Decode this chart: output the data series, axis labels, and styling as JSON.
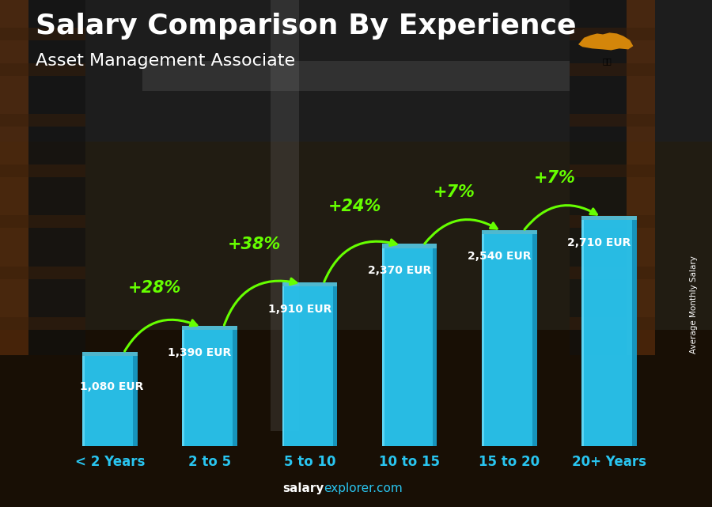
{
  "title": "Salary Comparison By Experience",
  "subtitle": "Asset Management Associate",
  "categories": [
    "< 2 Years",
    "2 to 5",
    "5 to 10",
    "10 to 15",
    "15 to 20",
    "20+ Years"
  ],
  "values": [
    1080,
    1390,
    1910,
    2370,
    2540,
    2710
  ],
  "pct_changes": [
    "+28%",
    "+38%",
    "+24%",
    "+7%",
    "+7%"
  ],
  "bar_color_main": "#29C5F0",
  "bar_color_left": "#35D0F8",
  "bar_color_right": "#1490B8",
  "bar_color_top": "#5DE0FF",
  "pct_color": "#66FF00",
  "value_labels": [
    "1,080 EUR",
    "1,390 EUR",
    "1,910 EUR",
    "2,370 EUR",
    "2,540 EUR",
    "2,710 EUR"
  ],
  "ylabel": "Average Monthly Salary",
  "ylim": [
    0,
    3400
  ],
  "bg_color_top": "#2a2a2a",
  "bg_color_bottom": "#1a1008",
  "footer_salary_color": "#FFFFFF",
  "footer_explorer_color": "#29C5F0",
  "title_fontsize": 26,
  "subtitle_fontsize": 16,
  "xtick_fontsize": 12,
  "value_fontsize": 10,
  "pct_fontsize": 15
}
